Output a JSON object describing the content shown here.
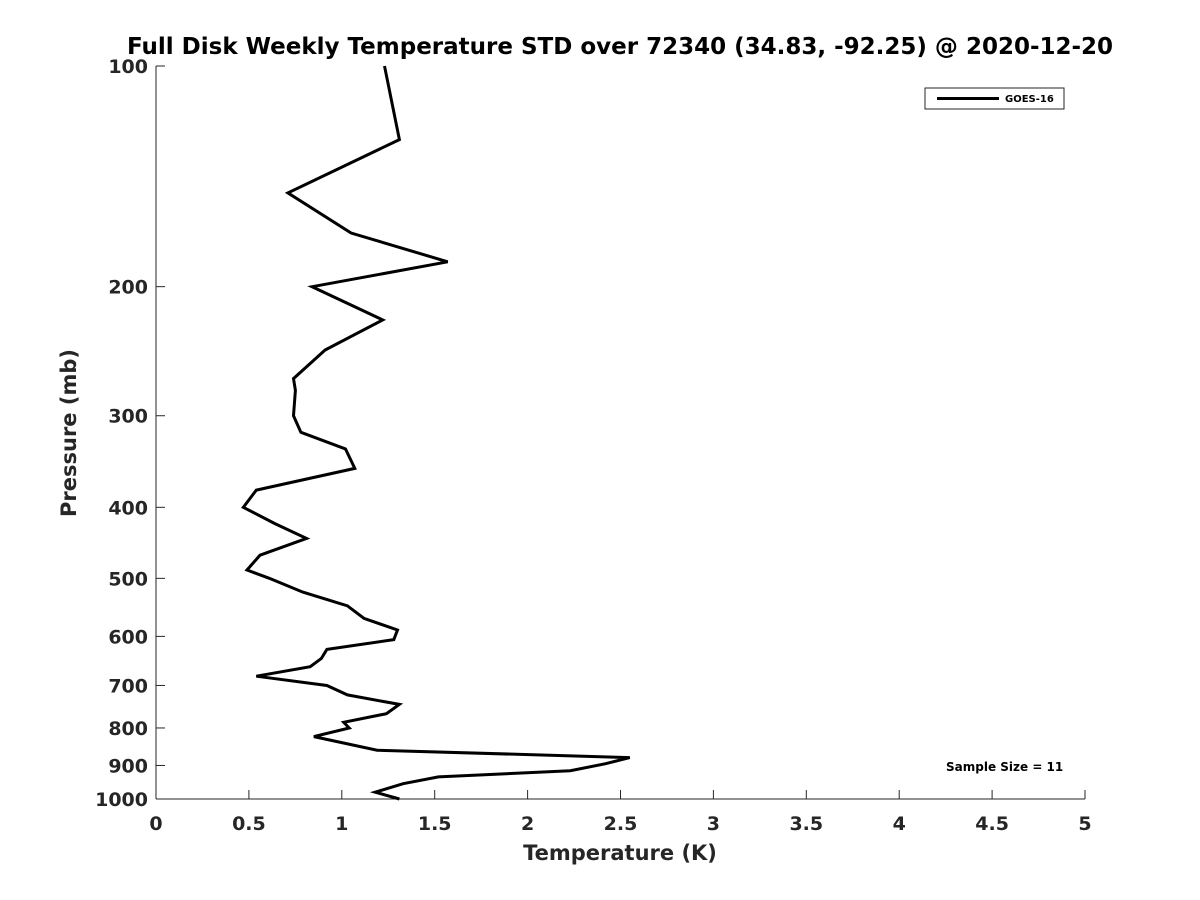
{
  "chart_data": {
    "type": "line",
    "title": "Full Disk Weekly Temperature STD over 72340 (34.83, -92.25) @ 2020-12-20",
    "xlabel": "Temperature (K)",
    "ylabel": "Pressure (mb)",
    "xlim": [
      0,
      5
    ],
    "ylim": [
      1000,
      100
    ],
    "y_scale": "log",
    "y_reversed": true,
    "grid": false,
    "x_ticks": [
      "0",
      "0.5",
      "1",
      "1.5",
      "2",
      "2.5",
      "3",
      "3.5",
      "4",
      "4.5",
      "5"
    ],
    "y_ticks": [
      "100",
      "200",
      "300",
      "400",
      "500",
      "600",
      "700",
      "800",
      "900",
      "1000"
    ],
    "legend_position": "top-right",
    "annotation": "Sample Size = 11",
    "series": [
      {
        "name": "GOES-16",
        "color": "#000000",
        "points": [
          [
            1.23,
            100
          ],
          [
            1.31,
            126
          ],
          [
            0.71,
            149
          ],
          [
            1.05,
            169
          ],
          [
            1.57,
            185
          ],
          [
            0.84,
            200
          ],
          [
            1.22,
            222
          ],
          [
            0.91,
            244
          ],
          [
            0.74,
            267
          ],
          [
            0.75,
            277
          ],
          [
            0.74,
            300
          ],
          [
            0.78,
            316
          ],
          [
            1.02,
            333
          ],
          [
            1.07,
            354
          ],
          [
            0.54,
            379
          ],
          [
            0.47,
            400
          ],
          [
            0.64,
            421
          ],
          [
            0.81,
            441
          ],
          [
            0.56,
            465
          ],
          [
            0.49,
            487
          ],
          [
            0.61,
            500
          ],
          [
            0.79,
            522
          ],
          [
            1.03,
            545
          ],
          [
            1.12,
            567
          ],
          [
            1.3,
            588
          ],
          [
            1.28,
            606
          ],
          [
            0.92,
            625
          ],
          [
            0.89,
            643
          ],
          [
            0.83,
            660
          ],
          [
            0.54,
            680
          ],
          [
            0.92,
            700
          ],
          [
            1.03,
            721
          ],
          [
            1.31,
            743
          ],
          [
            1.24,
            765
          ],
          [
            1.01,
            786
          ],
          [
            1.04,
            800
          ],
          [
            0.85,
            822
          ],
          [
            1.19,
            858
          ],
          [
            2.55,
            878
          ],
          [
            2.42,
            895
          ],
          [
            2.23,
            915
          ],
          [
            1.52,
            933
          ],
          [
            1.33,
            953
          ],
          [
            1.18,
            979
          ],
          [
            1.31,
            1000
          ]
        ]
      }
    ]
  }
}
